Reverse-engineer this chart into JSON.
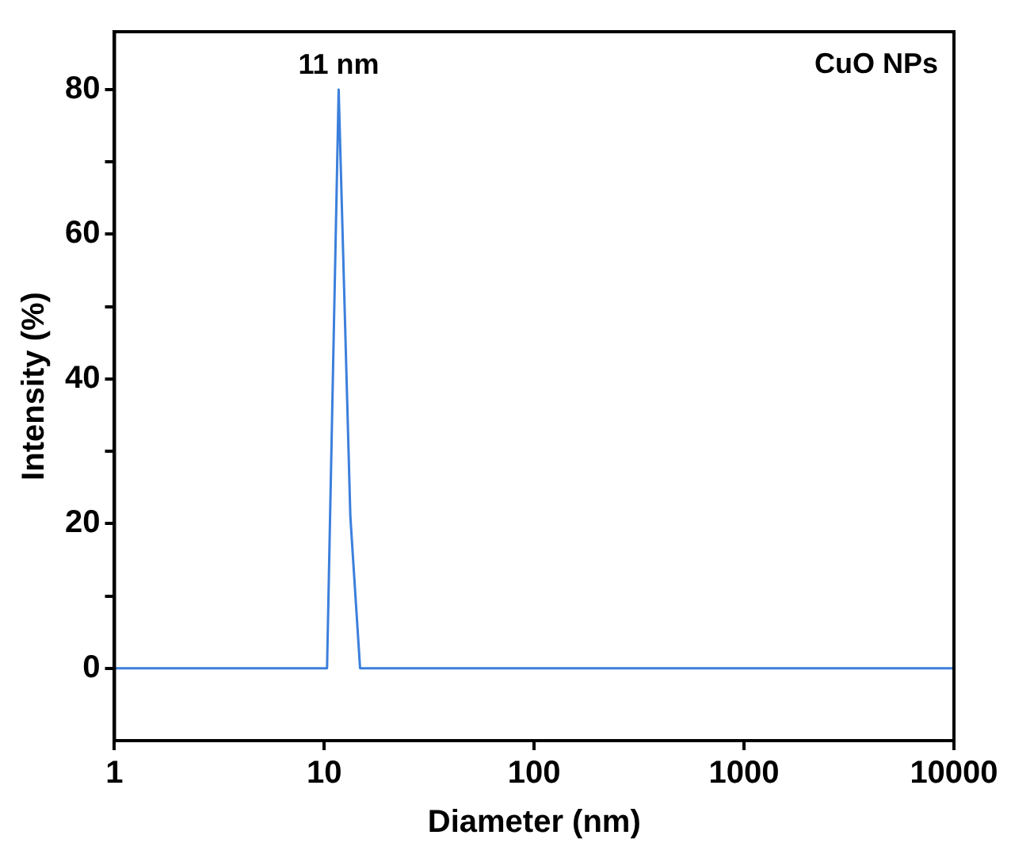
{
  "chart_data": {
    "type": "line",
    "xlabel": "Diameter (nm)",
    "ylabel": "Intensity (%)",
    "log": "x",
    "x": [
      1,
      10.3,
      11.7,
      13.3,
      14.8,
      10000
    ],
    "series": [
      {
        "color": "#3b7fdc",
        "values": [
          0,
          0,
          80,
          21,
          0,
          0
        ]
      }
    ],
    "xlim": [
      1,
      10000
    ],
    "xticks": [
      1,
      10,
      100,
      1000,
      10000
    ],
    "ylim": [
      -10,
      88
    ],
    "yticks": [
      0,
      {
        "value": 10,
        "label": null
      },
      20,
      {
        "value": 30,
        "label": null
      },
      40,
      {
        "value": 50,
        "label": null
      },
      60,
      {
        "value": 70,
        "label": null
      },
      80
    ],
    "annotations": [
      {
        "text": "11 nm",
        "x": 11.7,
        "y": 80
      },
      "CuO NPs"
    ],
    "grid": false,
    "legend": false,
    "marker": "none",
    "line_style": "solid"
  }
}
